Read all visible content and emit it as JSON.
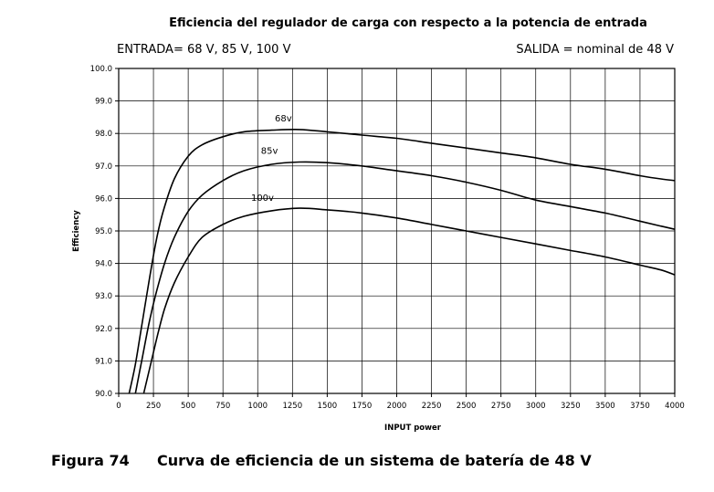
{
  "chart_data": {
    "type": "line",
    "title": "Eficiencia del regulador de carga con respecto a la potencia de entrada",
    "subtitle_left": "ENTRADA= 68 V, 85 V, 100 V",
    "subtitle_right": "SALIDA = nominal de 48 V",
    "xlabel": "INPUT power",
    "ylabel": "Efficiency",
    "xlim": [
      0,
      4000
    ],
    "ylim": [
      90,
      100
    ],
    "x_ticks": [
      "0",
      "250",
      "500",
      "750",
      "1000",
      "1250",
      "1500",
      "1750",
      "2000",
      "2250",
      "2500",
      "2750",
      "3000",
      "3250",
      "3500",
      "3750",
      "4000"
    ],
    "y_ticks": [
      "90.0",
      "91.0",
      "92.0",
      "93.0",
      "94.0",
      "95.0",
      "96.0",
      "97.0",
      "98.0",
      "99.0",
      "100.0"
    ],
    "grid": true,
    "series": [
      {
        "name": "68v",
        "x": [
          75,
          120,
          170,
          220,
          270,
          320,
          400,
          500,
          600,
          750,
          900,
          1100,
          1300,
          1500,
          1750,
          2000,
          2250,
          2500,
          2750,
          3000,
          3250,
          3500,
          3750,
          3900,
          4000
        ],
        "y": [
          90.0,
          90.9,
          92.2,
          93.5,
          94.7,
          95.6,
          96.6,
          97.3,
          97.65,
          97.9,
          98.05,
          98.1,
          98.12,
          98.05,
          97.95,
          97.85,
          97.7,
          97.55,
          97.4,
          97.25,
          97.05,
          96.9,
          96.7,
          96.6,
          96.55
        ]
      },
      {
        "name": "85v",
        "x": [
          120,
          170,
          220,
          270,
          330,
          400,
          500,
          600,
          750,
          900,
          1100,
          1300,
          1500,
          1750,
          2000,
          2250,
          2500,
          2750,
          3000,
          3250,
          3500,
          3750,
          3900,
          4000
        ],
        "y": [
          90.0,
          91.1,
          92.2,
          93.1,
          94.0,
          94.8,
          95.6,
          96.1,
          96.55,
          96.85,
          97.05,
          97.12,
          97.1,
          97.0,
          96.85,
          96.7,
          96.5,
          96.25,
          95.95,
          95.75,
          95.55,
          95.3,
          95.15,
          95.05
        ]
      },
      {
        "name": "100v",
        "x": [
          180,
          230,
          280,
          330,
          400,
          500,
          600,
          750,
          900,
          1100,
          1300,
          1500,
          1750,
          2000,
          2250,
          2500,
          2750,
          3000,
          3250,
          3500,
          3750,
          3900,
          4000
        ],
        "y": [
          90.0,
          90.9,
          91.8,
          92.6,
          93.4,
          94.2,
          94.8,
          95.2,
          95.45,
          95.62,
          95.7,
          95.65,
          95.55,
          95.4,
          95.2,
          95.0,
          94.8,
          94.6,
          94.4,
          94.2,
          93.95,
          93.8,
          93.65
        ]
      }
    ]
  },
  "figure_caption": {
    "number": "Figura 74",
    "text": "Curva de eficiencia de un sistema de batería de 48 V"
  }
}
